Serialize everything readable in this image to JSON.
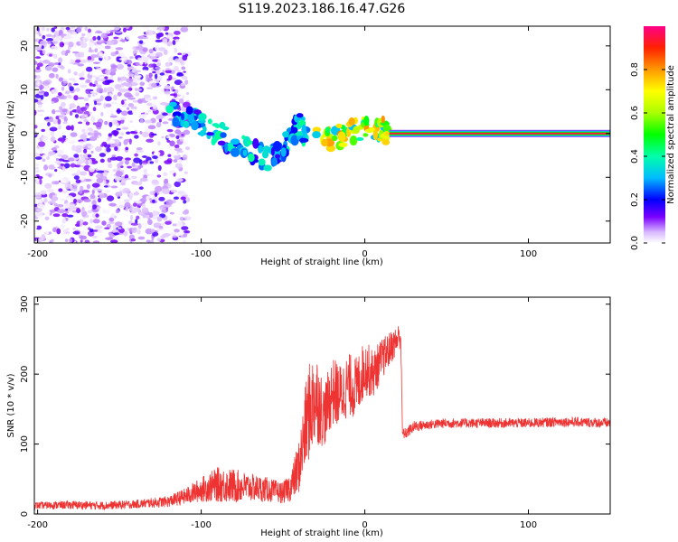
{
  "title": "S119.2023.186.16.47.G26",
  "colors": {
    "snr_line": "#ee3333",
    "frame": "#000000"
  },
  "chart_data": [
    {
      "type": "heatmap",
      "xlabel": "Height of straight line (km)",
      "ylabel": "Frequency (Hz)",
      "xlim": [
        -202,
        150
      ],
      "ylim": [
        -25,
        24.5
      ],
      "xticks": [
        -200,
        -100,
        0,
        100
      ],
      "xtick_labels": [
        "-200",
        "-100",
        "0",
        "100"
      ],
      "yticks": [
        -20,
        -10,
        0,
        10,
        20
      ],
      "ytick_labels": [
        "-20",
        "-10",
        "0",
        "10",
        "20"
      ],
      "colorbar": {
        "label": "Normalized spectral amplitude",
        "range": [
          0,
          1
        ],
        "ticks": [
          0,
          0.2,
          0.4,
          0.6,
          0.8
        ],
        "tick_labels": [
          "0.0",
          "0.2",
          "0.4",
          "0.6",
          "0.8"
        ]
      },
      "features": [
        {
          "kind": "noise",
          "x_range": [
            -202,
            -108
          ],
          "y_range": [
            -25,
            24.5
          ],
          "amplitude": 0.15
        },
        {
          "kind": "ridge",
          "points": [
            [
              -120,
              5
            ],
            [
              -110,
              4
            ],
            [
              -100,
              2
            ],
            [
              -90,
              0
            ],
            [
              -80,
              -2
            ],
            [
              -70,
              -4
            ],
            [
              -60,
              -6
            ],
            [
              -50,
              -4
            ],
            [
              -45,
              0
            ],
            [
              -40,
              2
            ],
            [
              -35,
              -2
            ]
          ],
          "amplitude": 0.3
        },
        {
          "kind": "ridge",
          "points": [
            [
              -30,
              -1
            ],
            [
              -20,
              -1
            ],
            [
              -10,
              0
            ],
            [
              0,
              1.5
            ],
            [
              10,
              1
            ],
            [
              15,
              0
            ]
          ],
          "amplitude": 0.6
        },
        {
          "kind": "tone",
          "x_range": [
            15,
            150
          ],
          "frequency": 0,
          "amplitude": 0.95
        }
      ]
    },
    {
      "type": "line",
      "xlabel": "Height of straight line (km)",
      "ylabel": "SNR (10 * v/v)",
      "xlim": [
        -202,
        150
      ],
      "ylim": [
        0,
        310
      ],
      "xticks": [
        -200,
        -100,
        0,
        100
      ],
      "xtick_labels": [
        "-200",
        "-100",
        "0",
        "100"
      ],
      "yticks": [
        0,
        100,
        200,
        300
      ],
      "ytick_labels": [
        "0",
        "100",
        "200",
        "300"
      ],
      "series": [
        {
          "x": [
            -202,
            -180,
            -160,
            -140,
            -120,
            -110,
            -100,
            -90,
            -80,
            -70,
            -60,
            -50,
            -45,
            -40,
            -35,
            -30,
            -25,
            -20,
            -15,
            -10,
            -5,
            0,
            5,
            10,
            15,
            20,
            21,
            22,
            23,
            25,
            30,
            40,
            50,
            70,
            100,
            120,
            150
          ],
          "y": [
            12,
            13,
            12,
            14,
            18,
            25,
            35,
            42,
            40,
            38,
            35,
            30,
            40,
            70,
            140,
            170,
            140,
            175,
            170,
            185,
            180,
            210,
            200,
            220,
            235,
            250,
            255,
            255,
            115,
            115,
            125,
            128,
            130,
            130,
            130,
            132,
            130
          ],
          "noise": [
            5,
            6,
            6,
            6,
            8,
            12,
            18,
            25,
            25,
            20,
            18,
            15,
            22,
            40,
            70,
            70,
            45,
            50,
            45,
            45,
            45,
            40,
            35,
            30,
            25,
            20,
            20,
            20,
            8,
            8,
            8,
            7,
            7,
            7,
            7,
            7,
            7
          ]
        }
      ]
    }
  ]
}
